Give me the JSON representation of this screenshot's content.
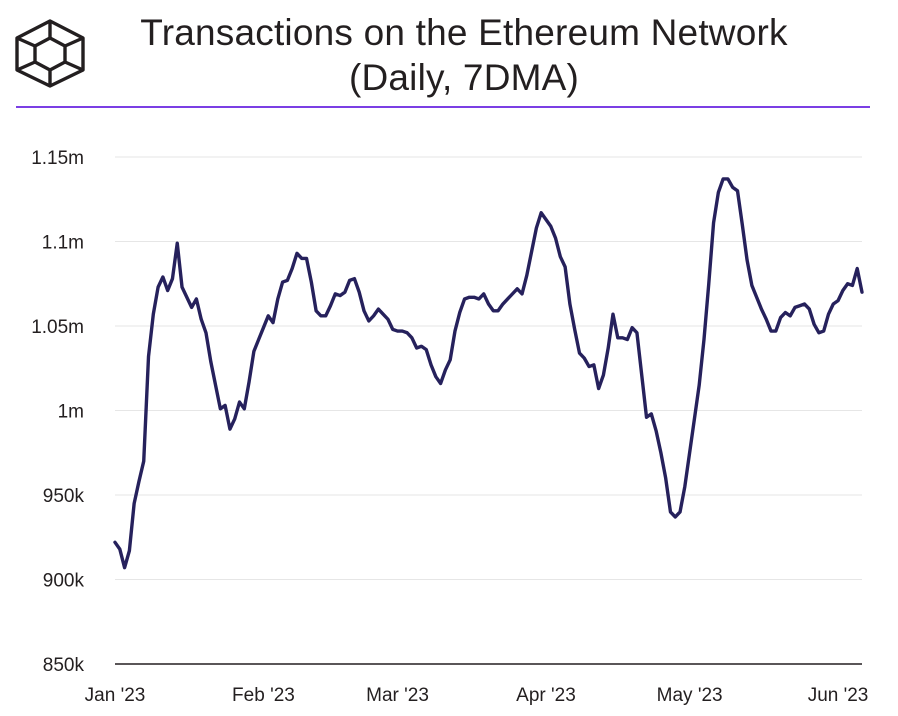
{
  "header": {
    "title_line1": "Transactions on the Ethereum Network",
    "title_line2": "(Daily, 7DMA)",
    "logo_icon": "block-cube-icon",
    "accent_color": "#7b3fe4"
  },
  "chart_data": {
    "type": "line",
    "title": "Transactions on the Ethereum Network (Daily, 7DMA)",
    "xlabel": "",
    "ylabel": "",
    "ylim": [
      850000,
      1150000
    ],
    "grid": true,
    "yticks": [
      {
        "value": 850000,
        "label": "850k"
      },
      {
        "value": 900000,
        "label": "900k"
      },
      {
        "value": 950000,
        "label": "950k"
      },
      {
        "value": 1000000,
        "label": "1m"
      },
      {
        "value": 1050000,
        "label": "1.05m"
      },
      {
        "value": 1100000,
        "label": "1.1m"
      },
      {
        "value": 1150000,
        "label": "1.15m"
      }
    ],
    "xticks": [
      {
        "value": "2023-01-01",
        "label": "Jan '23"
      },
      {
        "value": "2023-02-01",
        "label": "Feb '23"
      },
      {
        "value": "2023-03-01",
        "label": "Mar '23"
      },
      {
        "value": "2023-04-01",
        "label": "Apr '23"
      },
      {
        "value": "2023-05-01",
        "label": "May '23"
      },
      {
        "value": "2023-06-01",
        "label": "Jun '23"
      }
    ],
    "series": [
      {
        "color": "#26215c",
        "points": [
          [
            "2023-01-01",
            922000
          ],
          [
            "2023-01-02",
            918000
          ],
          [
            "2023-01-03",
            907000
          ],
          [
            "2023-01-04",
            917000
          ],
          [
            "2023-01-05",
            945000
          ],
          [
            "2023-01-06",
            958000
          ],
          [
            "2023-01-07",
            970000
          ],
          [
            "2023-01-08",
            1032000
          ],
          [
            "2023-01-09",
            1057000
          ],
          [
            "2023-01-10",
            1073000
          ],
          [
            "2023-01-11",
            1079000
          ],
          [
            "2023-01-12",
            1071000
          ],
          [
            "2023-01-13",
            1078000
          ],
          [
            "2023-01-14",
            1099000
          ],
          [
            "2023-01-15",
            1073000
          ],
          [
            "2023-01-16",
            1067000
          ],
          [
            "2023-01-17",
            1061000
          ],
          [
            "2023-01-18",
            1066000
          ],
          [
            "2023-01-19",
            1054000
          ],
          [
            "2023-01-20",
            1046000
          ],
          [
            "2023-01-21",
            1029000
          ],
          [
            "2023-01-22",
            1015000
          ],
          [
            "2023-01-23",
            1001000
          ],
          [
            "2023-01-24",
            1003000
          ],
          [
            "2023-01-25",
            989000
          ],
          [
            "2023-01-26",
            995000
          ],
          [
            "2023-01-27",
            1005000
          ],
          [
            "2023-01-28",
            1001000
          ],
          [
            "2023-01-29",
            1017000
          ],
          [
            "2023-01-30",
            1035000
          ],
          [
            "2023-01-31",
            1042000
          ],
          [
            "2023-02-01",
            1049000
          ],
          [
            "2023-02-02",
            1056000
          ],
          [
            "2023-02-03",
            1052000
          ],
          [
            "2023-02-04",
            1066000
          ],
          [
            "2023-02-05",
            1076000
          ],
          [
            "2023-02-06",
            1077000
          ],
          [
            "2023-02-07",
            1084000
          ],
          [
            "2023-02-08",
            1093000
          ],
          [
            "2023-02-09",
            1090000
          ],
          [
            "2023-02-10",
            1090000
          ],
          [
            "2023-02-11",
            1076000
          ],
          [
            "2023-02-12",
            1059000
          ],
          [
            "2023-02-13",
            1056000
          ],
          [
            "2023-02-14",
            1056000
          ],
          [
            "2023-02-15",
            1062000
          ],
          [
            "2023-02-16",
            1069000
          ],
          [
            "2023-02-17",
            1068000
          ],
          [
            "2023-02-18",
            1070000
          ],
          [
            "2023-02-19",
            1077000
          ],
          [
            "2023-02-20",
            1078000
          ],
          [
            "2023-02-21",
            1070000
          ],
          [
            "2023-02-22",
            1059000
          ],
          [
            "2023-02-23",
            1053000
          ],
          [
            "2023-02-24",
            1056000
          ],
          [
            "2023-02-25",
            1060000
          ],
          [
            "2023-02-26",
            1057000
          ],
          [
            "2023-02-27",
            1054000
          ],
          [
            "2023-02-28",
            1048000
          ],
          [
            "2023-03-01",
            1047000
          ],
          [
            "2023-03-02",
            1047000
          ],
          [
            "2023-03-03",
            1046000
          ],
          [
            "2023-03-04",
            1043000
          ],
          [
            "2023-03-05",
            1037000
          ],
          [
            "2023-03-06",
            1038000
          ],
          [
            "2023-03-07",
            1036000
          ],
          [
            "2023-03-08",
            1027000
          ],
          [
            "2023-03-09",
            1020000
          ],
          [
            "2023-03-10",
            1016000
          ],
          [
            "2023-03-11",
            1024000
          ],
          [
            "2023-03-12",
            1030000
          ],
          [
            "2023-03-13",
            1047000
          ],
          [
            "2023-03-14",
            1058000
          ],
          [
            "2023-03-15",
            1066000
          ],
          [
            "2023-03-16",
            1067000
          ],
          [
            "2023-03-17",
            1067000
          ],
          [
            "2023-03-18",
            1066000
          ],
          [
            "2023-03-19",
            1069000
          ],
          [
            "2023-03-20",
            1063000
          ],
          [
            "2023-03-21",
            1059000
          ],
          [
            "2023-03-22",
            1059000
          ],
          [
            "2023-03-23",
            1063000
          ],
          [
            "2023-03-24",
            1066000
          ],
          [
            "2023-03-25",
            1069000
          ],
          [
            "2023-03-26",
            1072000
          ],
          [
            "2023-03-27",
            1069000
          ],
          [
            "2023-03-28",
            1080000
          ],
          [
            "2023-03-29",
            1094000
          ],
          [
            "2023-03-30",
            1108000
          ],
          [
            "2023-03-31",
            1117000
          ],
          [
            "2023-04-01",
            1113000
          ],
          [
            "2023-04-02",
            1109000
          ],
          [
            "2023-04-03",
            1102000
          ],
          [
            "2023-04-04",
            1091000
          ],
          [
            "2023-04-05",
            1085000
          ],
          [
            "2023-04-06",
            1063000
          ],
          [
            "2023-04-07",
            1048000
          ],
          [
            "2023-04-08",
            1034000
          ],
          [
            "2023-04-09",
            1031000
          ],
          [
            "2023-04-10",
            1026000
          ],
          [
            "2023-04-11",
            1027000
          ],
          [
            "2023-04-12",
            1013000
          ],
          [
            "2023-04-13",
            1021000
          ],
          [
            "2023-04-14",
            1037000
          ],
          [
            "2023-04-15",
            1057000
          ],
          [
            "2023-04-16",
            1043000
          ],
          [
            "2023-04-17",
            1043000
          ],
          [
            "2023-04-18",
            1042000
          ],
          [
            "2023-04-19",
            1049000
          ],
          [
            "2023-04-20",
            1046000
          ],
          [
            "2023-04-21",
            1021000
          ],
          [
            "2023-04-22",
            996000
          ],
          [
            "2023-04-23",
            998000
          ],
          [
            "2023-04-24",
            988000
          ],
          [
            "2023-04-25",
            975000
          ],
          [
            "2023-04-26",
            960000
          ],
          [
            "2023-04-27",
            940000
          ],
          [
            "2023-04-28",
            937000
          ],
          [
            "2023-04-29",
            940000
          ],
          [
            "2023-04-30",
            955000
          ],
          [
            "2023-05-01",
            975000
          ],
          [
            "2023-05-02",
            995000
          ],
          [
            "2023-05-03",
            1015000
          ],
          [
            "2023-05-04",
            1042000
          ],
          [
            "2023-05-05",
            1075000
          ],
          [
            "2023-05-06",
            1111000
          ],
          [
            "2023-05-07",
            1129000
          ],
          [
            "2023-05-08",
            1137000
          ],
          [
            "2023-05-09",
            1137000
          ],
          [
            "2023-05-10",
            1132000
          ],
          [
            "2023-05-11",
            1130000
          ],
          [
            "2023-05-12",
            1110000
          ],
          [
            "2023-05-13",
            1089000
          ],
          [
            "2023-05-14",
            1074000
          ],
          [
            "2023-05-15",
            1067000
          ],
          [
            "2023-05-16",
            1060000
          ],
          [
            "2023-05-17",
            1054000
          ],
          [
            "2023-05-18",
            1047000
          ],
          [
            "2023-05-19",
            1047000
          ],
          [
            "2023-05-20",
            1055000
          ],
          [
            "2023-05-21",
            1058000
          ],
          [
            "2023-05-22",
            1056000
          ],
          [
            "2023-05-23",
            1061000
          ],
          [
            "2023-05-24",
            1062000
          ],
          [
            "2023-05-25",
            1063000
          ],
          [
            "2023-05-26",
            1060000
          ],
          [
            "2023-05-27",
            1051000
          ],
          [
            "2023-05-28",
            1046000
          ],
          [
            "2023-05-29",
            1047000
          ],
          [
            "2023-05-30",
            1057000
          ],
          [
            "2023-05-31",
            1063000
          ],
          [
            "2023-06-01",
            1065000
          ],
          [
            "2023-06-02",
            1071000
          ],
          [
            "2023-06-03",
            1075000
          ],
          [
            "2023-06-04",
            1074000
          ],
          [
            "2023-06-05",
            1084000
          ],
          [
            "2023-06-06",
            1070000
          ]
        ]
      }
    ]
  }
}
